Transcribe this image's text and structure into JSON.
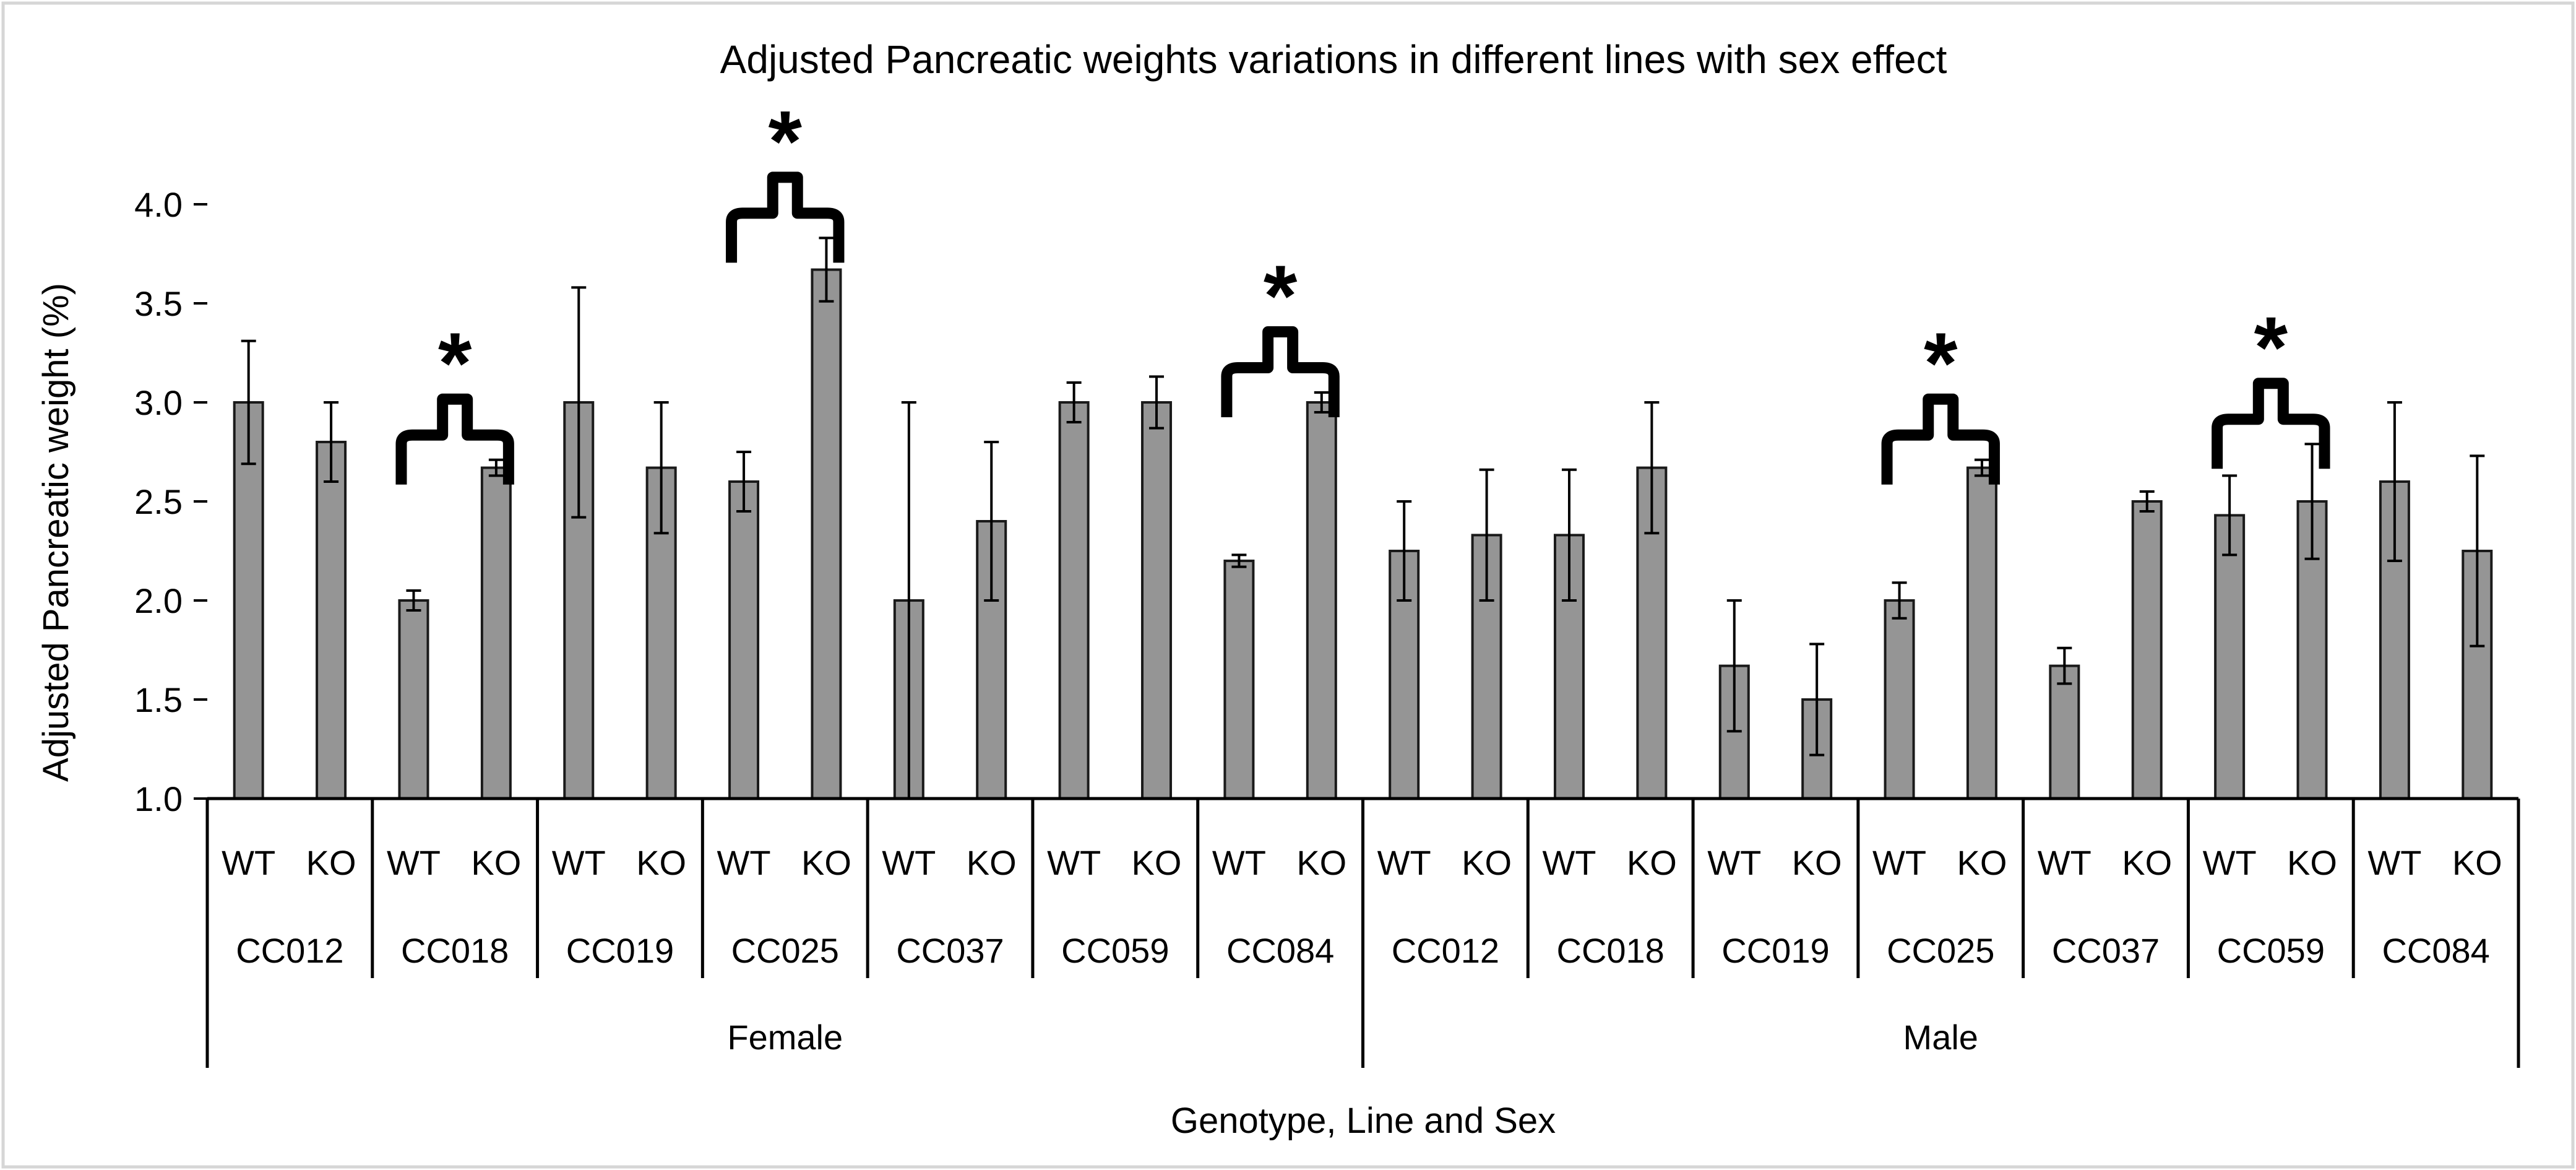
{
  "chart_data": {
    "type": "bar",
    "title": "Adjusted Pancreatic weights variations in different lines with sex effect",
    "xlabel": "Genotype, Line and Sex",
    "ylabel": "Adjusted Pancreatic weight (%)",
    "ylim": [
      1.0,
      4.0
    ],
    "yticks": [
      "1.0",
      "1.5",
      "2.0",
      "2.5",
      "3.0",
      "3.5",
      "4.0"
    ],
    "ytick_values": [
      1.0,
      1.5,
      2.0,
      2.5,
      3.0,
      3.5,
      4.0
    ],
    "grid": false,
    "bar_color": "#959595",
    "bar_edge_color": "#1a1a1a",
    "sexes": [
      "Female",
      "Male"
    ],
    "lines": [
      {
        "sex": "Female",
        "line": "CC012",
        "genotypes": [
          "WT",
          "KO"
        ],
        "values": [
          3.0,
          2.8
        ],
        "errors": [
          0.31,
          0.2
        ],
        "significant": false
      },
      {
        "sex": "Female",
        "line": "CC018",
        "genotypes": [
          "WT",
          "KO"
        ],
        "values": [
          2.0,
          2.67
        ],
        "errors": [
          0.05,
          0.04
        ],
        "significant": true
      },
      {
        "sex": "Female",
        "line": "CC019",
        "genotypes": [
          "WT",
          "KO"
        ],
        "values": [
          3.0,
          2.67
        ],
        "errors": [
          0.58,
          0.33
        ],
        "significant": false
      },
      {
        "sex": "Female",
        "line": "CC025",
        "genotypes": [
          "WT",
          "KO"
        ],
        "values": [
          2.6,
          3.67
        ],
        "errors": [
          0.15,
          0.16
        ],
        "significant": true
      },
      {
        "sex": "Female",
        "line": "CC037",
        "genotypes": [
          "WT",
          "KO"
        ],
        "values": [
          2.0,
          2.4
        ],
        "errors": [
          1.0,
          0.4
        ],
        "significant": false
      },
      {
        "sex": "Female",
        "line": "CC059",
        "genotypes": [
          "WT",
          "KO"
        ],
        "values": [
          3.0,
          3.0
        ],
        "errors": [
          0.1,
          0.13
        ],
        "significant": false
      },
      {
        "sex": "Female",
        "line": "CC084",
        "genotypes": [
          "WT",
          "KO"
        ],
        "values": [
          2.2,
          3.0
        ],
        "errors": [
          0.03,
          0.05
        ],
        "significant": true
      },
      {
        "sex": "Male",
        "line": "CC012",
        "genotypes": [
          "WT",
          "KO"
        ],
        "values": [
          2.25,
          2.33
        ],
        "errors": [
          0.25,
          0.33
        ],
        "significant": false
      },
      {
        "sex": "Male",
        "line": "CC018",
        "genotypes": [
          "WT",
          "KO"
        ],
        "values": [
          2.33,
          2.67
        ],
        "errors": [
          0.33,
          0.33
        ],
        "significant": false
      },
      {
        "sex": "Male",
        "line": "CC019",
        "genotypes": [
          "WT",
          "KO"
        ],
        "values": [
          1.67,
          1.5
        ],
        "errors": [
          0.33,
          0.28
        ],
        "significant": false
      },
      {
        "sex": "Male",
        "line": "CC025",
        "genotypes": [
          "WT",
          "KO"
        ],
        "values": [
          2.0,
          2.67
        ],
        "errors": [
          0.09,
          0.04
        ],
        "significant": true
      },
      {
        "sex": "Male",
        "line": "CC037",
        "genotypes": [
          "WT",
          "KO"
        ],
        "values": [
          1.67,
          2.5
        ],
        "errors": [
          0.09,
          0.05
        ],
        "significant": false
      },
      {
        "sex": "Male",
        "line": "CC059",
        "genotypes": [
          "WT",
          "KO"
        ],
        "values": [
          2.43,
          2.5
        ],
        "errors": [
          0.2,
          0.29
        ],
        "significant": true
      },
      {
        "sex": "Male",
        "line": "CC084",
        "genotypes": [
          "WT",
          "KO"
        ],
        "values": [
          2.6,
          2.25
        ],
        "errors": [
          0.4,
          0.48
        ],
        "significant": false
      }
    ],
    "annotation_mark": "*"
  }
}
